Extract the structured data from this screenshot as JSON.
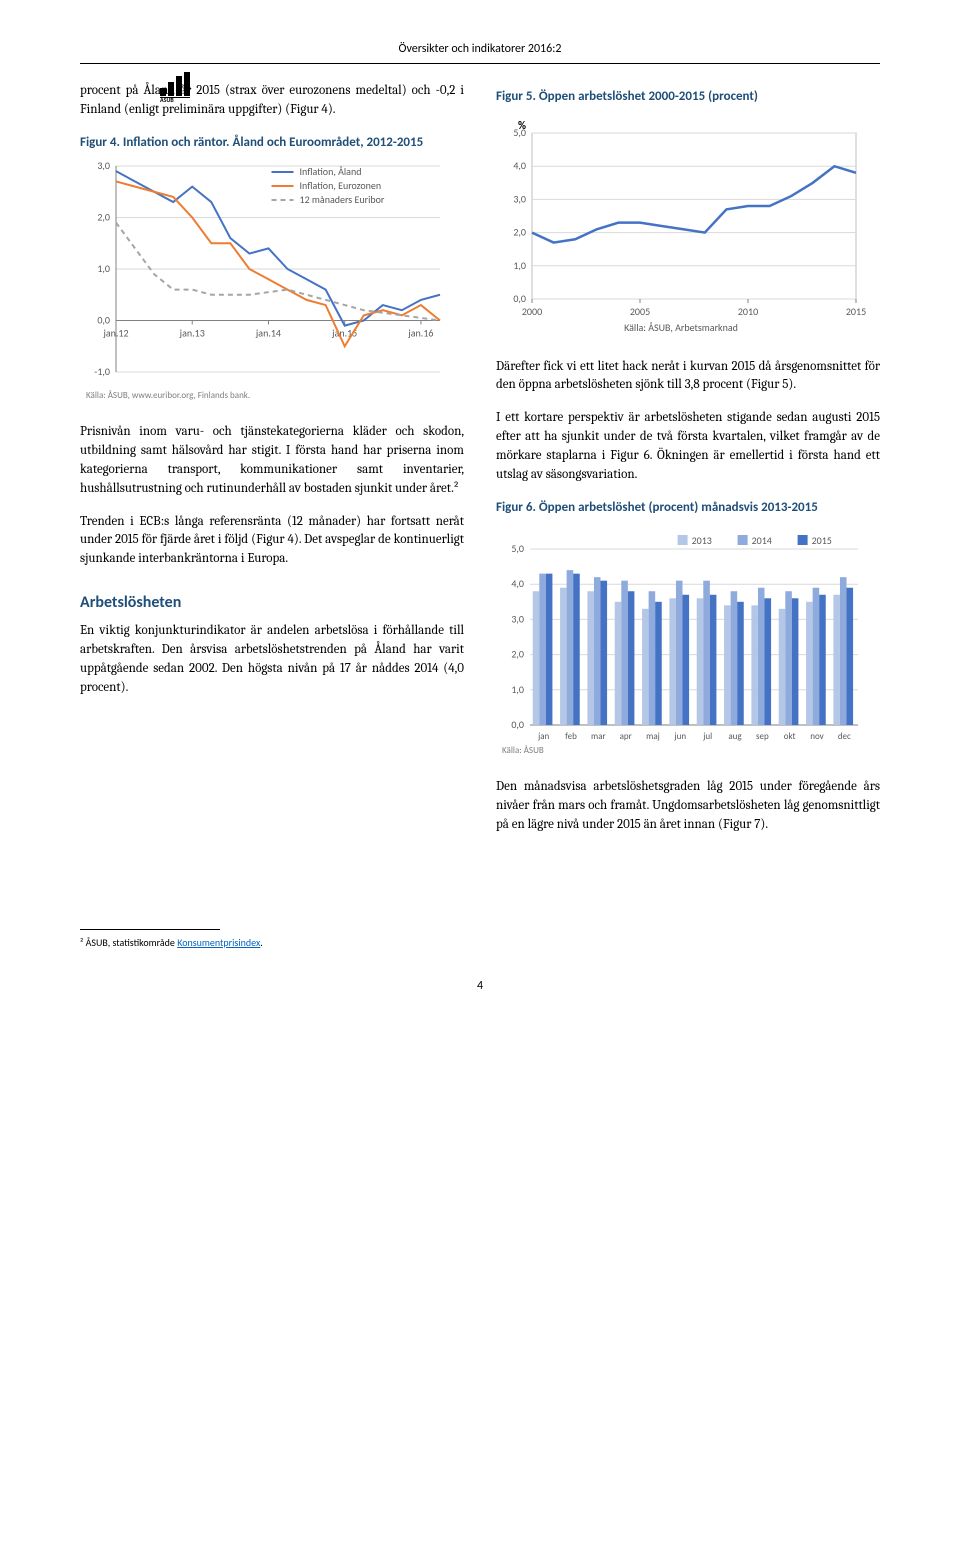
{
  "header": {
    "title": "Översikter och indikatorer 2016:2"
  },
  "left": {
    "p1": "procent på Åland år 2015 (strax över eurozonens medeltal) och -0,2 i Finland (enligt preliminära uppgifter) (Figur 4).",
    "fig4_title": "Figur 4. Inflation och räntor. Åland och Euroområdet, 2012-2015",
    "p2": "Prisnivån inom varu- och tjänstekategorierna kläder och skodon, utbildning samt hälsovård har stigit. I första hand har priserna inom kategorierna transport, kommunikationer samt inventarier, hushållsutrustning och rutinunderhåll av bostaden sjunkit under året.²",
    "p3": "Trenden i ECB:s långa referensränta (12 månader) har fortsatt neråt under 2015 för fjärde året i följd (Figur 4). Det avspeglar de kontinuerligt sjunkande interbankräntorna i Europa.",
    "section": "Arbetslösheten",
    "p4": "En viktig konjunkturindikator är andelen arbetslösa i förhållande till arbetskraften. Den årsvisa arbetslöshetstrenden på Åland har varit uppåtgående sedan 2002. Den högsta nivån på 17 år nåddes 2014 (4,0 procent)."
  },
  "right": {
    "fig5_title": "Figur 5. Öppen arbetslöshet 2000-2015 (procent)",
    "p1": "Därefter fick vi ett litet hack neråt i kurvan 2015 då årsgenomsnittet för den öppna arbetslösheten sjönk till 3,8 procent (Figur 5).",
    "p2": "I ett kortare perspektiv är arbetslösheten stigande sedan augusti 2015 efter att ha sjunkit under de två första kvartalen, vilket framgår av de mörkare staplarna i Figur 6. Ökningen är emellertid i första hand ett utslag av säsongsvariation.",
    "fig6_title": "Figur 6. Öppen arbetslöshet (procent) månadsvis 2013-2015",
    "p3": "Den månadsvisa arbetslöshetsgraden låg 2015 under föregående års nivåer från mars och framåt. Ungdomsarbetslösheten låg genomsnittligt på en lägre nivå under 2015 än året innan (Figur 7)."
  },
  "footnote": {
    "marker": "²",
    "text": " ÅSUB, statistikområde ",
    "link": "Konsumentprisindex",
    "suffix": "."
  },
  "pagenum": "4",
  "fig4": {
    "type": "line",
    "ytick_labels": [
      "-1,0",
      "0,0",
      "1,0",
      "2,0",
      "3,0"
    ],
    "ylim": [
      -1,
      3
    ],
    "xtick_labels": [
      "jan.12",
      "jan.13",
      "jan.14",
      "jan.15",
      "jan.16"
    ],
    "xpositions": [
      0,
      12,
      24,
      36,
      48
    ],
    "series": [
      {
        "name": "Inflation, Åland",
        "color": "#4472c4",
        "dash": "none",
        "x": [
          0,
          3,
          6,
          9,
          12,
          15,
          18,
          21,
          24,
          27,
          30,
          33,
          36,
          39,
          42,
          45,
          48,
          51
        ],
        "y": [
          2.9,
          2.7,
          2.5,
          2.3,
          2.6,
          2.3,
          1.6,
          1.3,
          1.4,
          1.0,
          0.8,
          0.6,
          -0.1,
          0.0,
          0.3,
          0.2,
          0.4,
          0.5
        ]
      },
      {
        "name": "Inflation, Eurozonen",
        "color": "#ed7d31",
        "dash": "none",
        "x": [
          0,
          3,
          6,
          9,
          12,
          15,
          18,
          21,
          24,
          27,
          30,
          33,
          36,
          39,
          42,
          45,
          48,
          51
        ],
        "y": [
          2.7,
          2.6,
          2.5,
          2.4,
          2.0,
          1.5,
          1.5,
          1.0,
          0.8,
          0.6,
          0.4,
          0.3,
          -0.5,
          0.1,
          0.2,
          0.1,
          0.3,
          0.0
        ]
      },
      {
        "name": "12 månaders Euribor",
        "color": "#a5a5a5",
        "dash": "5,4",
        "x": [
          0,
          3,
          6,
          9,
          12,
          15,
          18,
          21,
          24,
          27,
          30,
          33,
          36,
          39,
          42,
          45,
          48,
          51
        ],
        "y": [
          1.9,
          1.4,
          0.9,
          0.6,
          0.6,
          0.5,
          0.5,
          0.5,
          0.55,
          0.6,
          0.5,
          0.4,
          0.3,
          0.2,
          0.15,
          0.1,
          0.05,
          0.0
        ]
      }
    ],
    "legend_labels": [
      "Inflation, Åland",
      "Inflation, Eurozonen",
      "12 månaders Euribor"
    ],
    "source": "Källa: ÅSUB, www.euribor.org, Finlands bank.",
    "background_color": "#ffffff",
    "grid_color": "#d9d9d9",
    "label_fontsize": 10
  },
  "fig5": {
    "type": "line",
    "ylabel": "%",
    "ytick_labels": [
      "0,0",
      "1,0",
      "2,0",
      "3,0",
      "4,0",
      "5,0"
    ],
    "ylim": [
      0,
      5
    ],
    "xtick_labels": [
      "2000",
      "2005",
      "2010",
      "2015"
    ],
    "xpositions": [
      0,
      5,
      10,
      15
    ],
    "series": [
      {
        "color": "#4472c4",
        "x": [
          0,
          1,
          2,
          3,
          4,
          5,
          6,
          7,
          8,
          9,
          10,
          11,
          12,
          13,
          14,
          15
        ],
        "y": [
          2.0,
          1.7,
          1.8,
          2.1,
          2.3,
          2.3,
          2.2,
          2.1,
          2.0,
          2.7,
          2.8,
          2.8,
          3.1,
          3.5,
          4.0,
          3.8
        ]
      }
    ],
    "source": "Källa: ÅSUB, Arbetsmarknad",
    "background_color": "#ffffff",
    "grid_color": "#d9d9d9",
    "label_fontsize": 10
  },
  "fig6": {
    "type": "grouped-bar",
    "ytick_labels": [
      "0,0",
      "1,0",
      "2,0",
      "3,0",
      "4,0",
      "5,0"
    ],
    "ylim": [
      0,
      5
    ],
    "categories": [
      "jan",
      "feb",
      "mar",
      "apr",
      "maj",
      "jun",
      "jul",
      "aug",
      "sep",
      "okt",
      "nov",
      "dec"
    ],
    "series": [
      {
        "name": "2013",
        "color": "#b4c7e7",
        "values": [
          3.8,
          3.9,
          3.8,
          3.5,
          3.3,
          3.6,
          3.6,
          3.4,
          3.4,
          3.3,
          3.5,
          3.7
        ]
      },
      {
        "name": "2014",
        "color": "#8faadc",
        "values": [
          4.3,
          4.4,
          4.2,
          4.1,
          3.8,
          4.1,
          4.1,
          3.8,
          3.9,
          3.8,
          3.9,
          4.2
        ]
      },
      {
        "name": "2015",
        "color": "#4472c4",
        "values": [
          4.3,
          4.3,
          4.1,
          3.8,
          3.5,
          3.7,
          3.7,
          3.5,
          3.6,
          3.6,
          3.7,
          3.9
        ]
      }
    ],
    "legend_labels": [
      "2013",
      "2014",
      "2015"
    ],
    "source": "Källa: ÅSUB",
    "background_color": "#ffffff",
    "grid_color": "#d9d9d9",
    "label_fontsize": 10
  }
}
